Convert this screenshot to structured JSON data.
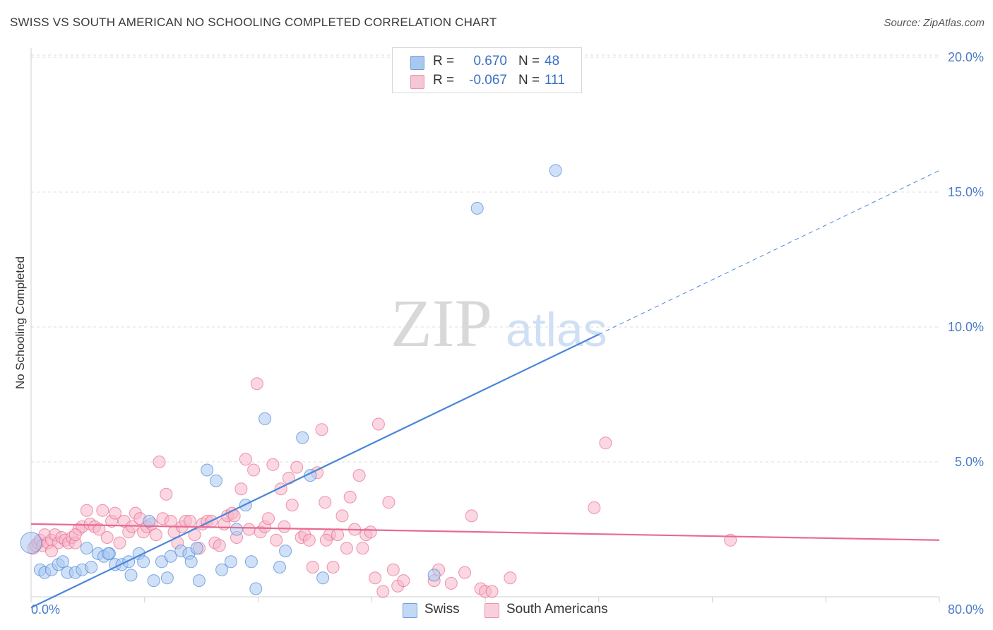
{
  "header": {
    "title": "SWISS VS SOUTH AMERICAN NO SCHOOLING COMPLETED CORRELATION CHART",
    "source": "Source: ZipAtlas.com"
  },
  "watermark": {
    "zip": "ZIP",
    "atlas": "atlas"
  },
  "legend": {
    "rows": [
      {
        "r_label": "R =",
        "r_value": "0.670",
        "n_label": "N =",
        "n_value": "48",
        "color": "#a9c8f0"
      },
      {
        "r_label": "R =",
        "r_value": "-0.067",
        "n_label": "N =",
        "n_value": "111",
        "color": "#f5b7c8"
      }
    ]
  },
  "bottom_legend": {
    "items": [
      {
        "label": "Swiss",
        "color": "#a9c8f0"
      },
      {
        "label": "South Americans",
        "color": "#f5b7c8"
      }
    ]
  },
  "chart_data": {
    "type": "scatter",
    "title": "SWISS VS SOUTH AMERICAN NO SCHOOLING COMPLETED CORRELATION CHART",
    "xlabel": "",
    "ylabel": "No Schooling Completed",
    "xlim": [
      0,
      80
    ],
    "ylim": [
      0,
      20
    ],
    "x_tick_labels": [
      "0.0%",
      "80.0%"
    ],
    "y_ticks": [
      5,
      10,
      15,
      20
    ],
    "y_tick_labels": [
      "5.0%",
      "10.0%",
      "15.0%",
      "20.0%"
    ],
    "grid": "horizontal dashed",
    "series": [
      {
        "name": "Swiss",
        "color": "#4a86d8",
        "fill": "#a9c8f0",
        "trend": {
          "x0": 0,
          "y0": -0.4,
          "x1": 80,
          "y1": 15.8,
          "solid_until_x": 50
        },
        "points": [
          [
            0.0,
            2.0
          ],
          [
            0.8,
            1.0
          ],
          [
            1.2,
            0.9
          ],
          [
            1.8,
            1.0
          ],
          [
            2.4,
            1.2
          ],
          [
            2.8,
            1.3
          ],
          [
            3.2,
            0.9
          ],
          [
            3.9,
            0.9
          ],
          [
            4.5,
            1.0
          ],
          [
            4.9,
            1.8
          ],
          [
            5.3,
            1.1
          ],
          [
            5.9,
            1.6
          ],
          [
            6.4,
            1.5
          ],
          [
            6.9,
            1.6
          ],
          [
            7.4,
            1.2
          ],
          [
            8.0,
            1.2
          ],
          [
            8.6,
            1.3
          ],
          [
            8.8,
            0.8
          ],
          [
            9.5,
            1.6
          ],
          [
            9.9,
            1.3
          ],
          [
            10.4,
            2.8
          ],
          [
            10.8,
            0.6
          ],
          [
            11.5,
            1.3
          ],
          [
            12.0,
            0.7
          ],
          [
            12.3,
            1.5
          ],
          [
            13.2,
            1.7
          ],
          [
            13.9,
            1.6
          ],
          [
            14.1,
            1.3
          ],
          [
            14.8,
            0.6
          ],
          [
            15.5,
            4.7
          ],
          [
            16.3,
            4.3
          ],
          [
            16.8,
            1.0
          ],
          [
            17.6,
            1.3
          ],
          [
            18.1,
            2.5
          ],
          [
            18.9,
            3.4
          ],
          [
            19.4,
            1.3
          ],
          [
            19.8,
            0.3
          ],
          [
            20.6,
            6.6
          ],
          [
            21.9,
            1.1
          ],
          [
            22.4,
            1.7
          ],
          [
            23.9,
            5.9
          ],
          [
            24.6,
            4.5
          ],
          [
            25.7,
            0.7
          ],
          [
            35.5,
            0.8
          ],
          [
            39.3,
            14.4
          ],
          [
            46.2,
            15.8
          ],
          [
            14.6,
            1.8
          ],
          [
            6.8,
            1.6
          ]
        ]
      },
      {
        "name": "South Americans",
        "color": "#e86a92",
        "fill": "#f5b7c8",
        "trend": {
          "x0": 0,
          "y0": 2.7,
          "x1": 80,
          "y1": 2.1,
          "solid_until_x": 80
        },
        "points": [
          [
            0.2,
            1.8
          ],
          [
            0.4,
            1.9
          ],
          [
            0.6,
            2.0
          ],
          [
            0.8,
            2.1
          ],
          [
            1.0,
            1.9
          ],
          [
            1.2,
            2.3
          ],
          [
            1.5,
            2.0
          ],
          [
            1.8,
            2.1
          ],
          [
            2.1,
            2.3
          ],
          [
            2.4,
            2.0
          ],
          [
            2.7,
            2.2
          ],
          [
            3.0,
            2.1
          ],
          [
            3.3,
            2.0
          ],
          [
            3.6,
            2.2
          ],
          [
            3.9,
            2.0
          ],
          [
            4.2,
            2.5
          ],
          [
            4.5,
            2.6
          ],
          [
            4.9,
            3.2
          ],
          [
            5.2,
            2.7
          ],
          [
            5.6,
            2.6
          ],
          [
            6.0,
            2.5
          ],
          [
            6.3,
            3.2
          ],
          [
            6.7,
            2.2
          ],
          [
            7.1,
            2.8
          ],
          [
            7.4,
            3.1
          ],
          [
            7.8,
            2.0
          ],
          [
            8.2,
            2.8
          ],
          [
            8.6,
            2.4
          ],
          [
            8.9,
            2.6
          ],
          [
            9.2,
            3.1
          ],
          [
            9.6,
            2.9
          ],
          [
            9.9,
            2.4
          ],
          [
            10.2,
            2.6
          ],
          [
            10.6,
            2.7
          ],
          [
            11.0,
            2.3
          ],
          [
            11.3,
            5.0
          ],
          [
            11.6,
            2.9
          ],
          [
            11.9,
            3.8
          ],
          [
            12.3,
            2.8
          ],
          [
            12.6,
            2.4
          ],
          [
            12.9,
            2.0
          ],
          [
            13.3,
            2.6
          ],
          [
            13.6,
            2.8
          ],
          [
            14.0,
            2.8
          ],
          [
            14.4,
            2.3
          ],
          [
            14.8,
            1.8
          ],
          [
            15.1,
            2.7
          ],
          [
            15.5,
            2.8
          ],
          [
            15.9,
            2.8
          ],
          [
            16.2,
            2.0
          ],
          [
            16.6,
            1.9
          ],
          [
            17.0,
            2.7
          ],
          [
            17.3,
            3.0
          ],
          [
            17.7,
            3.1
          ],
          [
            18.1,
            2.2
          ],
          [
            18.5,
            4.0
          ],
          [
            18.9,
            5.1
          ],
          [
            19.2,
            2.5
          ],
          [
            19.6,
            4.7
          ],
          [
            19.9,
            7.9
          ],
          [
            20.2,
            2.4
          ],
          [
            20.6,
            2.6
          ],
          [
            20.9,
            2.9
          ],
          [
            21.3,
            4.9
          ],
          [
            21.6,
            2.1
          ],
          [
            22.0,
            4.0
          ],
          [
            22.3,
            2.6
          ],
          [
            22.7,
            4.4
          ],
          [
            23.0,
            3.4
          ],
          [
            23.4,
            4.8
          ],
          [
            23.8,
            2.2
          ],
          [
            24.1,
            2.3
          ],
          [
            24.5,
            2.1
          ],
          [
            24.8,
            1.1
          ],
          [
            25.2,
            4.6
          ],
          [
            25.6,
            6.2
          ],
          [
            25.9,
            3.5
          ],
          [
            26.3,
            2.3
          ],
          [
            26.6,
            1.1
          ],
          [
            27.0,
            2.3
          ],
          [
            27.4,
            3.0
          ],
          [
            27.8,
            1.8
          ],
          [
            28.1,
            3.7
          ],
          [
            28.5,
            2.5
          ],
          [
            28.9,
            4.5
          ],
          [
            29.2,
            1.8
          ],
          [
            29.5,
            2.3
          ],
          [
            29.9,
            2.4
          ],
          [
            30.3,
            0.7
          ],
          [
            30.6,
            6.4
          ],
          [
            31.0,
            0.2
          ],
          [
            31.5,
            3.5
          ],
          [
            31.9,
            1.0
          ],
          [
            32.3,
            0.4
          ],
          [
            32.8,
            0.6
          ],
          [
            35.5,
            0.6
          ],
          [
            35.9,
            1.0
          ],
          [
            37.0,
            0.5
          ],
          [
            38.2,
            0.9
          ],
          [
            38.8,
            3.0
          ],
          [
            39.6,
            0.3
          ],
          [
            40.0,
            0.2
          ],
          [
            40.6,
            0.2
          ],
          [
            42.2,
            0.7
          ],
          [
            49.6,
            3.3
          ],
          [
            50.6,
            5.7
          ],
          [
            61.6,
            2.1
          ],
          [
            1.8,
            1.7
          ],
          [
            3.9,
            2.3
          ],
          [
            17.9,
            3.0
          ],
          [
            26.0,
            2.1
          ]
        ]
      }
    ]
  }
}
